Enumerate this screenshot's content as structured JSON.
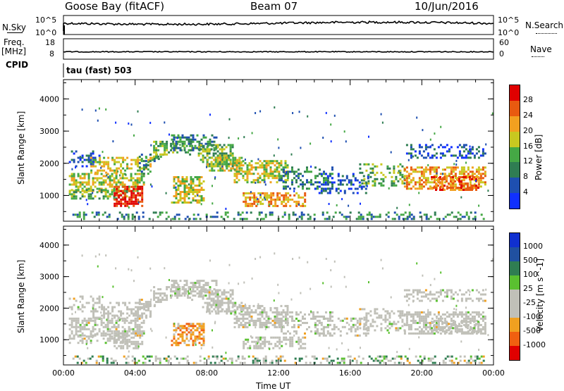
{
  "header": {
    "station": "Goose Bay (fitACF)",
    "beam": "Beam 07",
    "date": "10/Jun/2016"
  },
  "noise_panel": {
    "left_label": "N.Sky",
    "right_label": "N.Search",
    "tick_top": "10^5",
    "tick_bottom": "10^0"
  },
  "freq_panel": {
    "left_label_1": "Freq.",
    "left_label_2": "[MHz]",
    "right_label": "Nave",
    "left_ticks": [
      "18",
      "8"
    ],
    "right_ticks": [
      "60",
      "0"
    ]
  },
  "cpid": {
    "label": "CPID",
    "value": "tau (fast) 503"
  },
  "chart_data": [
    {
      "type": "heatmap",
      "name": "power",
      "ylabel": "Slant Range [km]",
      "xlabel": "",
      "x_ticks": [
        "00:00",
        "04:00",
        "08:00",
        "12:00",
        "16:00",
        "20:00",
        "00:00"
      ],
      "y_ticks": [
        1000,
        2000,
        3000,
        4000
      ],
      "ylim": [
        200,
        4600
      ],
      "xlim_hours": [
        0,
        24
      ],
      "colorbar": {
        "label": "Power [dB]",
        "ticks": [
          "4",
          "8",
          "12",
          "16",
          "20",
          "24",
          "28"
        ],
        "colors": [
          "#1030ff",
          "#1e4fb0",
          "#2f7d52",
          "#45a845",
          "#c8c820",
          "#f2a020",
          "#e85a10",
          "#e00000"
        ]
      }
    },
    {
      "type": "heatmap",
      "name": "velocity",
      "ylabel": "Slant Range [km]",
      "xlabel": "Time UT",
      "x_ticks": [
        "00:00",
        "04:00",
        "08:00",
        "12:00",
        "16:00",
        "20:00",
        "00:00"
      ],
      "y_ticks": [
        1000,
        2000,
        3000,
        4000
      ],
      "ylim": [
        200,
        4600
      ],
      "xlim_hours": [
        0,
        24
      ],
      "colorbar": {
        "label": "Velocity [m s^-1]",
        "ticks": [
          "1000",
          "500",
          "100",
          "25",
          "-25",
          "-100",
          "-500",
          "-1000"
        ],
        "colors": [
          "#1030d0",
          "#2050a0",
          "#2f7d52",
          "#5ac030",
          "#c0c0b8",
          "#c0c0b8",
          "#f0a020",
          "#f06010",
          "#e00000"
        ]
      }
    }
  ],
  "colors": {
    "ground_scatter": "#c0c0b8",
    "axis": "#000000"
  }
}
